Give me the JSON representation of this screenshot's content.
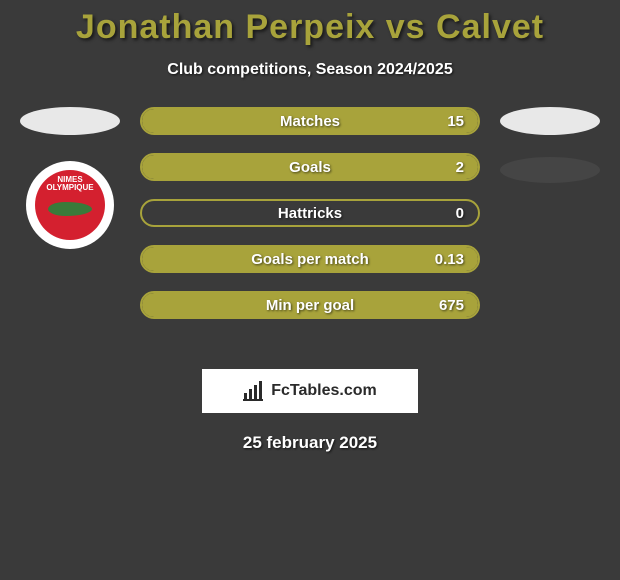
{
  "background_color": "#3a3a3a",
  "title": {
    "text": "Jonathan Perpeix vs Calvet",
    "color": "#a8a33b",
    "fontsize": 34
  },
  "subtitle": {
    "text": "Club competitions, Season 2024/2025",
    "color": "#ffffff",
    "fontsize": 16
  },
  "left_player": {
    "placeholder_color": "#e8e8e8",
    "club_name": "NIMES OLYMPIQUE",
    "club_badge_bg": "#d4202f",
    "club_badge_outer": "#ffffff"
  },
  "right_player": {
    "placeholder1_color": "#e8e8e8",
    "placeholder2_color": "#454545"
  },
  "bars": {
    "fill_color": "#a8a33b",
    "border_color": "#a8a33b",
    "empty_border_color": "#a8a33b",
    "label_color": "#ffffff",
    "value_color": "#ffffff",
    "height": 28,
    "radius": 14,
    "items": [
      {
        "label": "Matches",
        "value": "15",
        "fill_pct": 100
      },
      {
        "label": "Goals",
        "value": "2",
        "fill_pct": 100
      },
      {
        "label": "Hattricks",
        "value": "0",
        "fill_pct": 0
      },
      {
        "label": "Goals per match",
        "value": "0.13",
        "fill_pct": 100
      },
      {
        "label": "Min per goal",
        "value": "675",
        "fill_pct": 100
      }
    ]
  },
  "footer": {
    "brand": "FcTables.com",
    "bg": "#ffffff",
    "text_color": "#2a2a2a"
  },
  "date": {
    "text": "25 february 2025",
    "color": "#ffffff"
  }
}
